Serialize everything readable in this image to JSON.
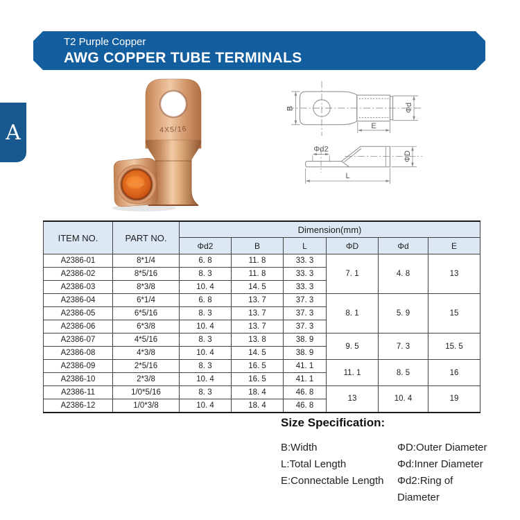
{
  "banner": {
    "subtitle": "T2 Purple Copper",
    "title": "AWG COPPER TUBE TERMINALS",
    "bg_color": "#135E9E",
    "text_color": "#FFFFFF"
  },
  "side_tab": {
    "label": "A",
    "bg_color": "#17598F"
  },
  "product_photo": {
    "stamp_text": "4X5/16"
  },
  "diagrams": {
    "top_view": {
      "width_label": "B",
      "inner_dia_label": "Φd",
      "connectable_label": "E"
    },
    "side_view": {
      "ring_dia_label": "Φd2",
      "outer_dia_label": "ΦD",
      "length_label": "L"
    }
  },
  "table": {
    "header_bg": "#DCE9F4",
    "columns": {
      "item": "ITEM NO.",
      "part": "PART NO.",
      "dimension_group": "Dimension(mm)",
      "sub": [
        "Φd2",
        "B",
        "L",
        "ΦD",
        "Φd",
        "E"
      ]
    },
    "rows": [
      {
        "item": "A2386-01",
        "part": "8*1/4",
        "d2": "6. 8",
        "b": "11. 8",
        "l": "33. 3"
      },
      {
        "item": "A2386-02",
        "part": "8*5/16",
        "d2": "8. 3",
        "b": "11. 8",
        "l": "33. 3"
      },
      {
        "item": "A2386-03",
        "part": "8*3/8",
        "d2": "10. 4",
        "b": "14. 5",
        "l": "33. 3"
      },
      {
        "item": "A2386-04",
        "part": "6*1/4",
        "d2": "6. 8",
        "b": "13. 7",
        "l": "37. 3"
      },
      {
        "item": "A2386-05",
        "part": "6*5/16",
        "d2": "8. 3",
        "b": "13. 7",
        "l": "37. 3"
      },
      {
        "item": "A2386-06",
        "part": "6*3/8",
        "d2": "10. 4",
        "b": "13. 7",
        "l": "37. 3"
      },
      {
        "item": "A2386-07",
        "part": "4*5/16",
        "d2": "8. 3",
        "b": "13. 8",
        "l": "38. 9"
      },
      {
        "item": "A2386-08",
        "part": "4*3/8",
        "d2": "10. 4",
        "b": "14. 5",
        "l": "38. 9"
      },
      {
        "item": "A2386-09",
        "part": "2*5/16",
        "d2": "8. 3",
        "b": "16. 5",
        "l": "41. 1"
      },
      {
        "item": "A2386-10",
        "part": "2*3/8",
        "d2": "10. 4",
        "b": "16. 5",
        "l": "41. 1"
      },
      {
        "item": "A2386-11",
        "part": "1/0*5/16",
        "d2": "8. 3",
        "b": "18. 4",
        "l": "46. 8"
      },
      {
        "item": "A2386-12",
        "part": "1/0*3/8",
        "d2": "10. 4",
        "b": "18. 4",
        "l": "46. 8"
      }
    ],
    "merged_groups": [
      {
        "span": 3,
        "phiD": "7. 1",
        "phid": "4. 8",
        "e": "13"
      },
      {
        "span": 3,
        "phiD": "8. 1",
        "phid": "5. 9",
        "e": "15"
      },
      {
        "span": 2,
        "phiD": "9. 5",
        "phid": "7. 3",
        "e": "15. 5"
      },
      {
        "span": 2,
        "phiD": "11. 1",
        "phid": "8. 5",
        "e": "16"
      },
      {
        "span": 2,
        "phiD": "13",
        "phid": "10. 4",
        "e": "19"
      }
    ]
  },
  "size_specification": {
    "heading": "Size Specification:",
    "left_items": [
      "B:Width",
      "L:Total Length",
      "E:Connectable Length"
    ],
    "right_items": [
      "ΦD:Outer Diameter",
      "Φd:Inner Diameter",
      "Φd2:Ring of Diameter"
    ]
  }
}
